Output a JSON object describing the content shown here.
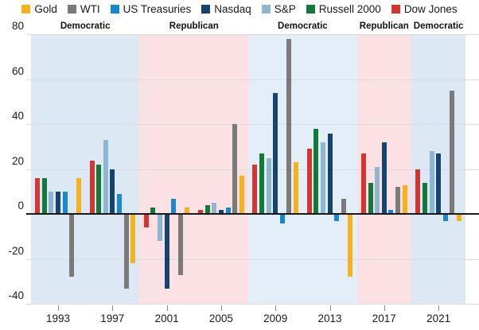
{
  "legend": {
    "items": [
      {
        "label": "Gold",
        "color": "#F7B11E"
      },
      {
        "label": "WTI",
        "color": "#7A7A7A"
      },
      {
        "label": "US Treasuries",
        "color": "#1787D1"
      },
      {
        "label": "Nasdaq",
        "color": "#15456F"
      },
      {
        "label": "S&P",
        "color": "#8FB6D0"
      },
      {
        "label": "Russell 2000",
        "color": "#137938"
      },
      {
        "label": "Dow Jones",
        "color": "#D33531"
      }
    ]
  },
  "chart_data": {
    "type": "bar",
    "title": "",
    "categories": [
      "1993",
      "1997",
      "2001",
      "2005",
      "2009",
      "2013",
      "2017",
      "2021"
    ],
    "series": [
      {
        "name": "Gold",
        "color": "#F7B11E",
        "values": [
          16,
          -22,
          3,
          17,
          23,
          -28,
          13,
          -3
        ]
      },
      {
        "name": "WTI",
        "color": "#7A7A7A",
        "values": [
          -28,
          -33,
          -27,
          40,
          78,
          7,
          12,
          55
        ]
      },
      {
        "name": "US Treasuries",
        "color": "#1787D1",
        "values": [
          10,
          9,
          7,
          3,
          -4,
          -3,
          2,
          -3
        ]
      },
      {
        "name": "Nasdaq",
        "color": "#15456F",
        "values": [
          10,
          20,
          -33,
          2,
          54,
          36,
          32,
          27
        ]
      },
      {
        "name": "S&P",
        "color": "#8FB6D0",
        "values": [
          10,
          33,
          -12,
          5,
          25,
          32,
          21,
          28
        ]
      },
      {
        "name": "Russell 2000",
        "color": "#137938",
        "values": [
          16,
          22,
          3,
          4,
          27,
          38,
          14,
          14
        ]
      },
      {
        "name": "Dow Jones",
        "color": "#D33531",
        "values": [
          16,
          24,
          -6,
          2,
          22,
          29,
          27,
          20
        ]
      }
    ],
    "bar_order_within_group": "reverse-of-legend",
    "ylim": [
      -40,
      80
    ],
    "y_ticks": [
      80,
      60,
      40,
      20,
      0,
      -20,
      -40
    ],
    "grid": true,
    "legend_position": "top",
    "bands": [
      {
        "label": "Democratic",
        "terms": 2,
        "color": "#DCE9F5"
      },
      {
        "label": "Republican",
        "terms": 2,
        "color": "#FBE1E3"
      },
      {
        "label": "Democratic",
        "terms": 2,
        "color": "#E4EEF8"
      },
      {
        "label": "Republican",
        "terms": 1,
        "color": "#FBE1E3"
      },
      {
        "label": "Democratic",
        "terms": 1,
        "color": "#DCE9F5"
      }
    ]
  }
}
